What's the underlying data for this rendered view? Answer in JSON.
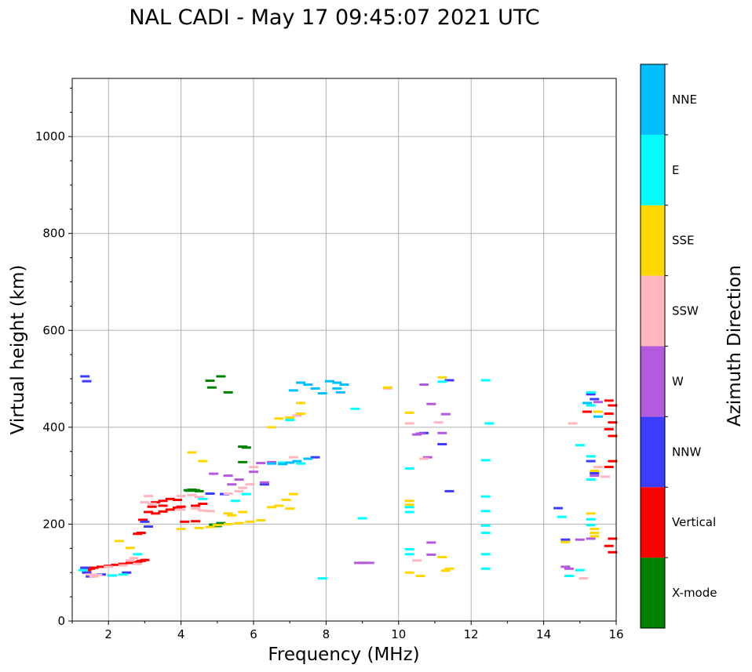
{
  "chart_data": {
    "type": "scatter",
    "title": "NAL CADI - May 17 09:45:07 2021 UTC",
    "xlabel": "Frequency (MHz)",
    "ylabel": "Virtual height (km)",
    "xlim": [
      1,
      16
    ],
    "ylim": [
      0,
      1120
    ],
    "xticks": [
      2,
      4,
      6,
      8,
      10,
      12,
      14,
      16
    ],
    "yticks": [
      0,
      200,
      400,
      600,
      800,
      1000
    ],
    "grid": true,
    "colorbar": {
      "label": "Azimuth Direction",
      "categories": [
        {
          "name": "X-mode",
          "color": "#008000"
        },
        {
          "name": "Vertical",
          "color": "#ff0000"
        },
        {
          "name": "NNW",
          "color": "#3c3cff"
        },
        {
          "name": "W",
          "color": "#b45adc"
        },
        {
          "name": "SSW",
          "color": "#ffb6c1"
        },
        {
          "name": "SSE",
          "color": "#ffd700"
        },
        {
          "name": "E",
          "color": "#00ffff"
        },
        {
          "name": "NNE",
          "color": "#00bfff"
        }
      ]
    },
    "series": [
      {
        "name": "X-mode",
        "points": [
          [
            4.2,
            270
          ],
          [
            4.25,
            269
          ],
          [
            4.3,
            271
          ],
          [
            4.4,
            270
          ],
          [
            4.5,
            268
          ],
          [
            5.7,
            360
          ],
          [
            5.8,
            358
          ],
          [
            5.7,
            328
          ],
          [
            5.1,
            505
          ],
          [
            4.8,
            496
          ],
          [
            4.85,
            482
          ],
          [
            5.3,
            472
          ],
          [
            4.9,
            199
          ],
          [
            5.0,
            196
          ],
          [
            5.1,
            202
          ]
        ]
      },
      {
        "name": "Vertical",
        "points": [
          [
            1.4,
            105
          ],
          [
            1.5,
            108
          ],
          [
            1.6,
            110
          ],
          [
            1.8,
            112
          ],
          [
            2.0,
            114
          ],
          [
            2.2,
            116
          ],
          [
            2.4,
            118
          ],
          [
            2.6,
            120
          ],
          [
            2.8,
            122
          ],
          [
            2.9,
            124
          ],
          [
            3.0,
            126
          ],
          [
            2.8,
            180
          ],
          [
            2.9,
            182
          ],
          [
            2.95,
            209
          ],
          [
            3.1,
            225
          ],
          [
            3.3,
            222
          ],
          [
            3.5,
            226
          ],
          [
            3.7,
            230
          ],
          [
            3.9,
            234
          ],
          [
            3.3,
            245
          ],
          [
            3.5,
            248
          ],
          [
            3.7,
            252
          ],
          [
            3.9,
            250
          ],
          [
            3.2,
            236
          ],
          [
            3.5,
            238
          ],
          [
            4.0,
            236
          ],
          [
            4.4,
            238
          ],
          [
            4.1,
            205
          ],
          [
            4.4,
            206
          ],
          [
            4.6,
            242
          ],
          [
            15.2,
            432
          ],
          [
            15.8,
            455
          ],
          [
            15.9,
            445
          ],
          [
            15.8,
            428
          ],
          [
            15.9,
            410
          ],
          [
            15.8,
            396
          ],
          [
            15.9,
            382
          ],
          [
            15.9,
            330
          ],
          [
            15.8,
            318
          ],
          [
            15.9,
            170
          ],
          [
            15.8,
            155
          ],
          [
            15.9,
            142
          ]
        ]
      },
      {
        "name": "NNW",
        "points": [
          [
            1.35,
            505
          ],
          [
            1.4,
            495
          ],
          [
            1.35,
            110
          ],
          [
            1.4,
            100
          ],
          [
            1.5,
            92
          ],
          [
            1.8,
            96
          ],
          [
            2.1,
            94
          ],
          [
            2.5,
            100
          ],
          [
            3.0,
            205
          ],
          [
            3.1,
            195
          ],
          [
            4.8,
            263
          ],
          [
            5.2,
            262
          ],
          [
            6.3,
            282
          ],
          [
            7.7,
            338
          ],
          [
            10.7,
            388
          ],
          [
            11.2,
            365
          ],
          [
            11.4,
            268
          ],
          [
            11.4,
            497
          ],
          [
            14.4,
            233
          ],
          [
            15.3,
            468
          ],
          [
            15.4,
            458
          ],
          [
            15.3,
            330
          ],
          [
            15.4,
            305
          ],
          [
            14.6,
            168
          ]
        ]
      },
      {
        "name": "W",
        "points": [
          [
            4.9,
            304
          ],
          [
            5.3,
            300
          ],
          [
            5.4,
            282
          ],
          [
            5.6,
            292
          ],
          [
            6.0,
            308
          ],
          [
            6.2,
            326
          ],
          [
            6.5,
            328
          ],
          [
            6.3,
            286
          ],
          [
            8.9,
            120
          ],
          [
            9.0,
            120
          ],
          [
            9.2,
            120
          ],
          [
            10.7,
            488
          ],
          [
            10.9,
            448
          ],
          [
            10.8,
            338
          ],
          [
            11.3,
            427
          ],
          [
            11.2,
            388
          ],
          [
            10.6,
            387
          ],
          [
            10.5,
            385
          ],
          [
            10.9,
            162
          ],
          [
            10.9,
            137
          ],
          [
            14.6,
            112
          ],
          [
            14.7,
            108
          ],
          [
            15.0,
            168
          ],
          [
            15.3,
            170
          ],
          [
            15.4,
            300
          ],
          [
            15.5,
            452
          ]
        ]
      },
      {
        "name": "SSW",
        "points": [
          [
            1.5,
            96
          ],
          [
            1.6,
            92
          ],
          [
            1.7,
            95
          ],
          [
            2.0,
            112
          ],
          [
            2.4,
            115
          ],
          [
            2.6,
            125
          ],
          [
            2.7,
            130
          ],
          [
            2.8,
            118
          ],
          [
            3.0,
            245
          ],
          [
            3.1,
            258
          ],
          [
            3.2,
            242
          ],
          [
            4.0,
            258
          ],
          [
            4.3,
            260
          ],
          [
            4.5,
            256
          ],
          [
            4.0,
            230
          ],
          [
            4.4,
            232
          ],
          [
            4.6,
            228
          ],
          [
            4.8,
            227
          ],
          [
            5.3,
            263
          ],
          [
            5.6,
            268
          ],
          [
            5.7,
            275
          ],
          [
            5.9,
            282
          ],
          [
            6.0,
            318
          ],
          [
            7.1,
            338
          ],
          [
            7.2,
            424
          ],
          [
            9.7,
            480
          ],
          [
            10.7,
            335
          ],
          [
            11.1,
            410
          ],
          [
            14.8,
            408
          ],
          [
            15.1,
            88
          ],
          [
            15.5,
            318
          ],
          [
            15.7,
            298
          ],
          [
            10.3,
            408
          ],
          [
            10.5,
            125
          ]
        ]
      },
      {
        "name": "SSE",
        "points": [
          [
            4.0,
            190
          ],
          [
            4.5,
            192
          ],
          [
            4.8,
            194
          ],
          [
            5.0,
            198
          ],
          [
            5.3,
            200
          ],
          [
            5.6,
            202
          ],
          [
            5.9,
            205
          ],
          [
            6.2,
            208
          ],
          [
            6.5,
            235
          ],
          [
            6.7,
            238
          ],
          [
            6.9,
            250
          ],
          [
            7.1,
            262
          ],
          [
            7.0,
            232
          ],
          [
            6.5,
            400
          ],
          [
            6.7,
            418
          ],
          [
            7.0,
            420
          ],
          [
            7.3,
            450
          ],
          [
            7.3,
            428
          ],
          [
            5.3,
            222
          ],
          [
            5.7,
            225
          ],
          [
            5.4,
            218
          ],
          [
            4.3,
            348
          ],
          [
            4.6,
            330
          ],
          [
            9.7,
            482
          ],
          [
            10.3,
            430
          ],
          [
            10.3,
            248
          ],
          [
            10.3,
            240
          ],
          [
            10.3,
            100
          ],
          [
            10.6,
            93
          ],
          [
            11.3,
            104
          ],
          [
            11.4,
            108
          ],
          [
            11.2,
            132
          ],
          [
            11.2,
            503
          ],
          [
            14.6,
            163
          ],
          [
            15.3,
            222
          ],
          [
            15.4,
            182
          ],
          [
            15.4,
            190
          ],
          [
            15.4,
            175
          ],
          [
            15.4,
            310
          ],
          [
            15.5,
            432
          ],
          [
            2.6,
            151
          ],
          [
            2.3,
            165
          ]
        ]
      },
      {
        "name": "E",
        "points": [
          [
            1.3,
            105
          ],
          [
            2.1,
            94
          ],
          [
            2.4,
            96
          ],
          [
            2.8,
            138
          ],
          [
            4.6,
            252
          ],
          [
            5.5,
            248
          ],
          [
            5.8,
            262
          ],
          [
            7.0,
            415
          ],
          [
            6.8,
            327
          ],
          [
            7.3,
            325
          ],
          [
            9.0,
            212
          ],
          [
            8.8,
            438
          ],
          [
            7.9,
            88
          ],
          [
            10.3,
            315
          ],
          [
            10.3,
            235
          ],
          [
            10.3,
            225
          ],
          [
            10.3,
            148
          ],
          [
            10.3,
            138
          ],
          [
            11.2,
            494
          ],
          [
            12.4,
            497
          ],
          [
            12.5,
            408
          ],
          [
            12.4,
            332
          ],
          [
            12.4,
            257
          ],
          [
            12.4,
            227
          ],
          [
            12.4,
            197
          ],
          [
            12.4,
            182
          ],
          [
            12.4,
            138
          ],
          [
            12.4,
            108
          ],
          [
            14.5,
            215
          ],
          [
            15.0,
            363
          ],
          [
            15.0,
            105
          ],
          [
            14.7,
            93
          ],
          [
            15.3,
            472
          ],
          [
            15.3,
            445
          ],
          [
            15.3,
            340
          ],
          [
            15.3,
            292
          ],
          [
            15.3,
            210
          ],
          [
            15.3,
            198
          ]
        ]
      },
      {
        "name": "NNE",
        "points": [
          [
            7.1,
            476
          ],
          [
            7.3,
            492
          ],
          [
            7.5,
            488
          ],
          [
            7.7,
            480
          ],
          [
            7.9,
            470
          ],
          [
            8.1,
            495
          ],
          [
            8.3,
            492
          ],
          [
            8.5,
            488
          ],
          [
            8.3,
            480
          ],
          [
            8.4,
            472
          ],
          [
            6.5,
            325
          ],
          [
            6.8,
            324
          ],
          [
            7.0,
            327
          ],
          [
            7.2,
            330
          ],
          [
            7.5,
            335
          ],
          [
            15.5,
            422
          ],
          [
            15.2,
            450
          ]
        ]
      }
    ]
  }
}
